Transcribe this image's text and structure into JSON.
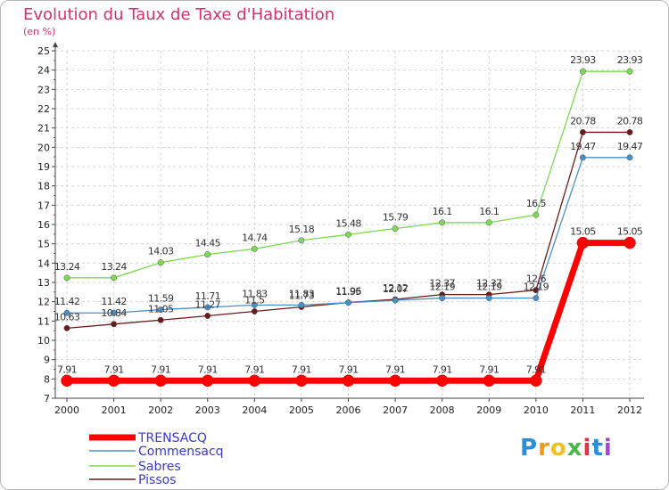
{
  "title": "Evolution du Taux de Taxe d'Habitation",
  "unit": "(en %)",
  "logo": {
    "letters": [
      "P",
      "r",
      "o",
      "x",
      "i",
      "t",
      "i"
    ],
    "colors": [
      "#2a8fd8",
      "#f09a1a",
      "#f0c020",
      "#4ab84a",
      "#d8344a",
      "#2a8fd8",
      "#a04ac8"
    ]
  },
  "chart_data": {
    "type": "line",
    "x": [
      "2000",
      "2001",
      "2002",
      "2003",
      "2004",
      "2005",
      "2006",
      "2007",
      "2008",
      "2009",
      "2010",
      "2011",
      "2012"
    ],
    "ylim": [
      7,
      25
    ],
    "yticks": [
      "7",
      "8",
      "9",
      "10",
      "11",
      "12",
      "13",
      "14",
      "15",
      "16",
      "17",
      "18",
      "19",
      "20",
      "21",
      "22",
      "23",
      "24",
      "25"
    ],
    "grid": true,
    "legend_position": "bottom-left",
    "series": [
      {
        "name": "TRENSACQ",
        "color": "#ff0000",
        "values": [
          7.91,
          7.91,
          7.91,
          7.91,
          7.91,
          7.91,
          7.91,
          7.91,
          7.91,
          7.91,
          7.91,
          15.05,
          15.05
        ],
        "labels": [
          "7.91",
          "7.91",
          "7.91",
          "7.91",
          "7.91",
          "7.91",
          "7.91",
          "7.91",
          "7.91",
          "7.91",
          "7.91",
          "15.05",
          "15.05"
        ]
      },
      {
        "name": "Commensacq",
        "color": "#4a90c8",
        "values": [
          11.42,
          11.42,
          11.59,
          11.71,
          11.83,
          11.83,
          11.95,
          12.07,
          12.19,
          12.19,
          12.19,
          19.47,
          19.47
        ],
        "labels": [
          "11.42",
          "11.42",
          "11.59",
          "11.71",
          "11.83",
          "11.83",
          "11.95",
          "12.07",
          "12.19",
          "12.19",
          "12.19",
          "19.47",
          "19.47"
        ]
      },
      {
        "name": "Sabres",
        "color": "#7ed957",
        "values": [
          13.24,
          13.24,
          14.03,
          14.45,
          14.74,
          15.18,
          15.48,
          15.79,
          16.1,
          16.1,
          16.5,
          23.93,
          23.93
        ],
        "labels": [
          "13.24",
          "13.24",
          "14.03",
          "14.45",
          "14.74",
          "15.18",
          "15.48",
          "15.79",
          "16.1",
          "16.1",
          "16.5",
          "23.93",
          "23.93"
        ]
      },
      {
        "name": "Pissos",
        "color": "#6b1a1a",
        "values": [
          10.63,
          10.84,
          11.05,
          11.27,
          11.5,
          11.73,
          11.96,
          12.12,
          12.37,
          12.37,
          12.6,
          20.78,
          20.78
        ],
        "labels": [
          "10.63",
          "10.84",
          "11.05",
          "11.27",
          "11.5",
          "11.73",
          "11.96",
          "12.12",
          "12.37",
          "12.37",
          "12.6",
          "20.78",
          "20.78"
        ]
      }
    ]
  }
}
